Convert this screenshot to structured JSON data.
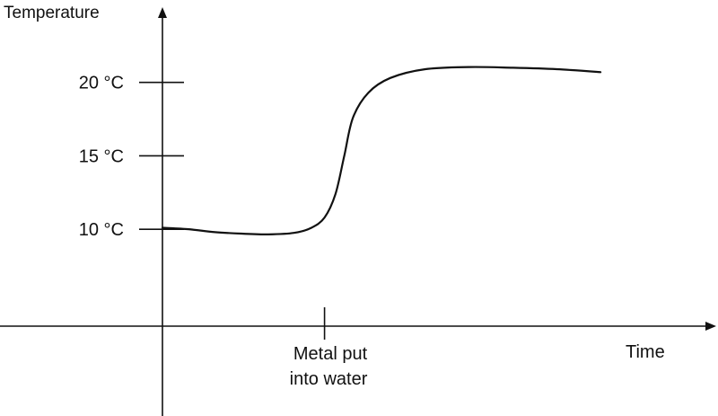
{
  "chart_data": {
    "type": "line",
    "title": "",
    "ylabel": "Temperature",
    "xlabel": "Time",
    "y_ticks": [
      {
        "value": 10,
        "label": "10 °C"
      },
      {
        "value": 15,
        "label": "15 °C"
      },
      {
        "value": 20,
        "label": "20 °C"
      }
    ],
    "annotation": {
      "label_line1": "Metal put",
      "label_line2": "into water"
    },
    "series": [
      {
        "points": [
          [
            0.0,
            10.1
          ],
          [
            0.6,
            10.0
          ],
          [
            1.2,
            9.8
          ],
          [
            1.8,
            9.7
          ],
          [
            2.4,
            9.65
          ],
          [
            3.0,
            9.75
          ],
          [
            3.4,
            10.1
          ],
          [
            3.7,
            10.8
          ],
          [
            3.95,
            12.4
          ],
          [
            4.15,
            15.0
          ],
          [
            4.35,
            17.6
          ],
          [
            4.7,
            19.3
          ],
          [
            5.2,
            20.3
          ],
          [
            6.0,
            20.9
          ],
          [
            7.0,
            21.05
          ],
          [
            8.0,
            21.0
          ],
          [
            9.0,
            20.9
          ],
          [
            10.0,
            20.7
          ]
        ]
      }
    ],
    "xlim": [
      0,
      12.6
    ],
    "ylim": [
      3.4,
      25
    ],
    "event_x": 3.7,
    "grid": false,
    "legend": "none"
  }
}
